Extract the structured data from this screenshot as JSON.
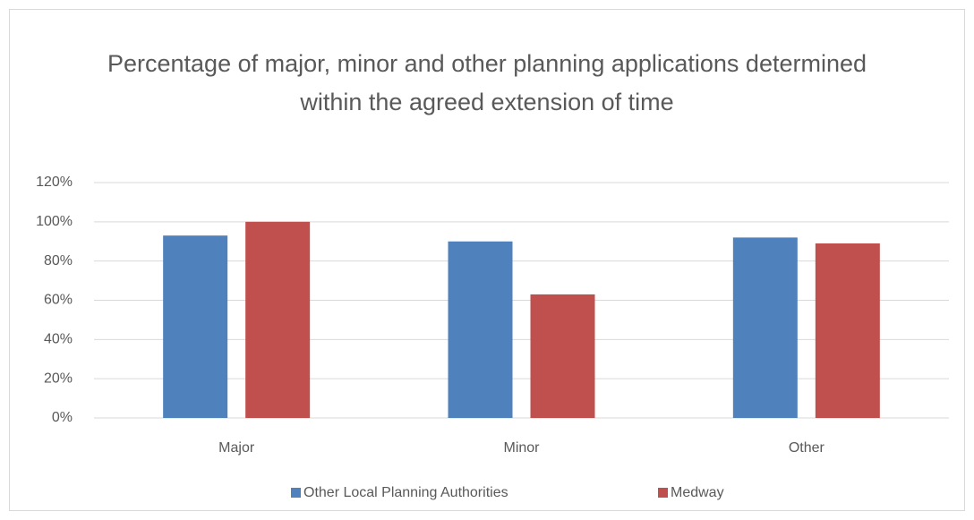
{
  "chart_data": {
    "type": "bar",
    "title": "Percentage of major, minor and other planning applications determined within the agreed extension of time",
    "categories": [
      "Major",
      "Minor",
      "Other"
    ],
    "series": [
      {
        "name": "Other Local Planning Authorities",
        "color": "#4f81bd",
        "values": [
          93,
          90,
          92
        ]
      },
      {
        "name": "Medway",
        "color": "#c0504d",
        "values": [
          100,
          63,
          89
        ]
      }
    ],
    "ylim": [
      0,
      120
    ],
    "yticks": [
      {
        "value": 0,
        "label": "0%"
      },
      {
        "value": 20,
        "label": "20%"
      },
      {
        "value": 40,
        "label": "40%"
      },
      {
        "value": 60,
        "label": "60%"
      },
      {
        "value": 80,
        "label": "80%"
      },
      {
        "value": 100,
        "label": "100%"
      },
      {
        "value": 120,
        "label": "120%"
      }
    ],
    "grid": true,
    "legend": "bottom"
  }
}
